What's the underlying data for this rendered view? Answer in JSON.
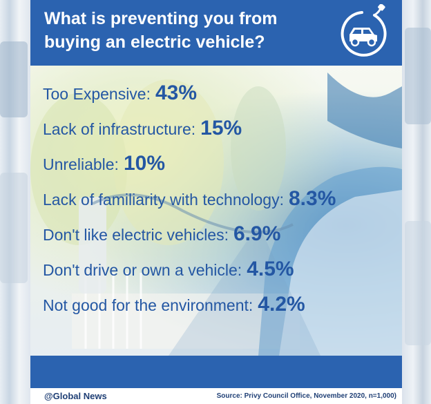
{
  "header": {
    "title": "What is preventing you from\nbuying an electric vehicle?",
    "icon": "electric-car-plug-icon"
  },
  "chart_data": {
    "type": "table",
    "title": "What is preventing you from buying an electric vehicle?",
    "rows": [
      {
        "label": "Too Expensive:",
        "value": "43%"
      },
      {
        "label": "Lack of infrastructure:",
        "value": "15%"
      },
      {
        "label": "Unreliable:",
        "value": "10%"
      },
      {
        "label": "Lack of familiarity with technology:",
        "value": "8.3%"
      },
      {
        "label": "Don't like electric vehicles:",
        "value": "6.9%"
      },
      {
        "label": "Don't drive or own a vehicle:",
        "value": "4.5%"
      },
      {
        "label": "Not good for the environment:",
        "value": "4.2%"
      }
    ],
    "values": [
      43,
      15,
      10,
      8.3,
      6.9,
      4.5,
      4.2
    ],
    "unit": "%"
  },
  "footer": {
    "handle": "@Global News",
    "source": "Source: Privy Council Office, November 2020, n=1,000)"
  },
  "colors": {
    "brand_blue": "#2b63b0",
    "text_blue": "#2457a3",
    "white": "#ffffff"
  }
}
